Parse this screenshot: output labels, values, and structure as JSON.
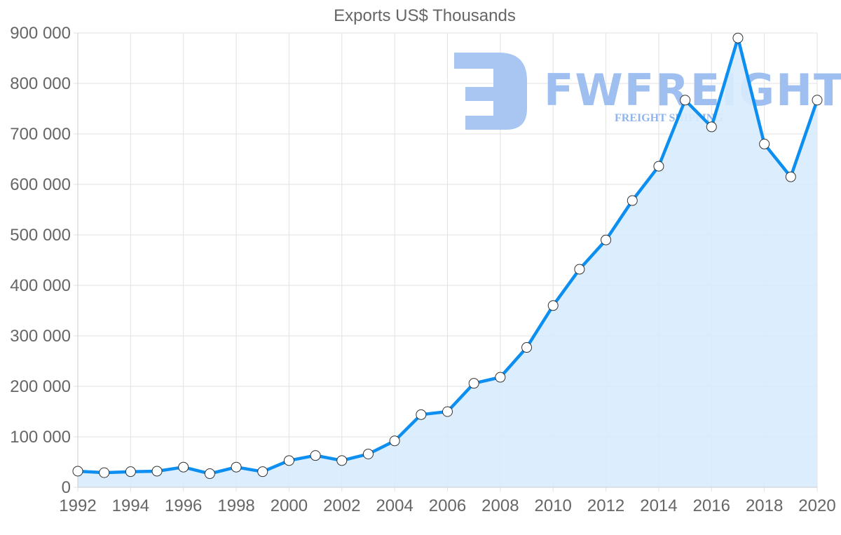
{
  "chart_data": {
    "type": "line",
    "title": "Exports US$ Thousands",
    "xlabel": "",
    "ylabel": "",
    "x": [
      1992,
      1993,
      1994,
      1995,
      1996,
      1997,
      1998,
      1999,
      2000,
      2001,
      2002,
      2003,
      2004,
      2005,
      2006,
      2007,
      2008,
      2009,
      2010,
      2011,
      2012,
      2013,
      2014,
      2015,
      2016,
      2017,
      2018,
      2019,
      2020
    ],
    "series": [
      {
        "name": "Exports US$ Thousands",
        "values": [
          32000,
          29000,
          31000,
          32000,
          40000,
          27000,
          40000,
          31000,
          53000,
          63000,
          53000,
          66000,
          92000,
          144000,
          150000,
          206000,
          218000,
          277000,
          360000,
          432000,
          490000,
          568000,
          636000,
          767000,
          714000,
          890000,
          680000,
          615000,
          767000
        ]
      }
    ],
    "xlim": [
      1992,
      2020
    ],
    "ylim": [
      0,
      900000
    ],
    "x_tick_labels": [
      "1992",
      "1994",
      "1996",
      "1998",
      "2000",
      "2002",
      "2004",
      "2006",
      "2008",
      "2010",
      "2012",
      "2014",
      "2016",
      "2018",
      "2020"
    ],
    "y_tick_labels": [
      "0",
      "100 000",
      "200 000",
      "300 000",
      "400 000",
      "500 000",
      "600 000",
      "700 000",
      "800 000",
      "900 000"
    ],
    "grid": true,
    "legend": "none",
    "fill": true,
    "colors": {
      "line": "#0c8ff0",
      "fill": "#d8ecfd",
      "grid": "#e2e2e2",
      "point_fill": "#ffffff",
      "point_stroke": "#333333",
      "text": "#666666"
    }
  },
  "watermark": {
    "main": "FWFREIGHT",
    "sub": "FREIGHT SHIPPING"
  }
}
